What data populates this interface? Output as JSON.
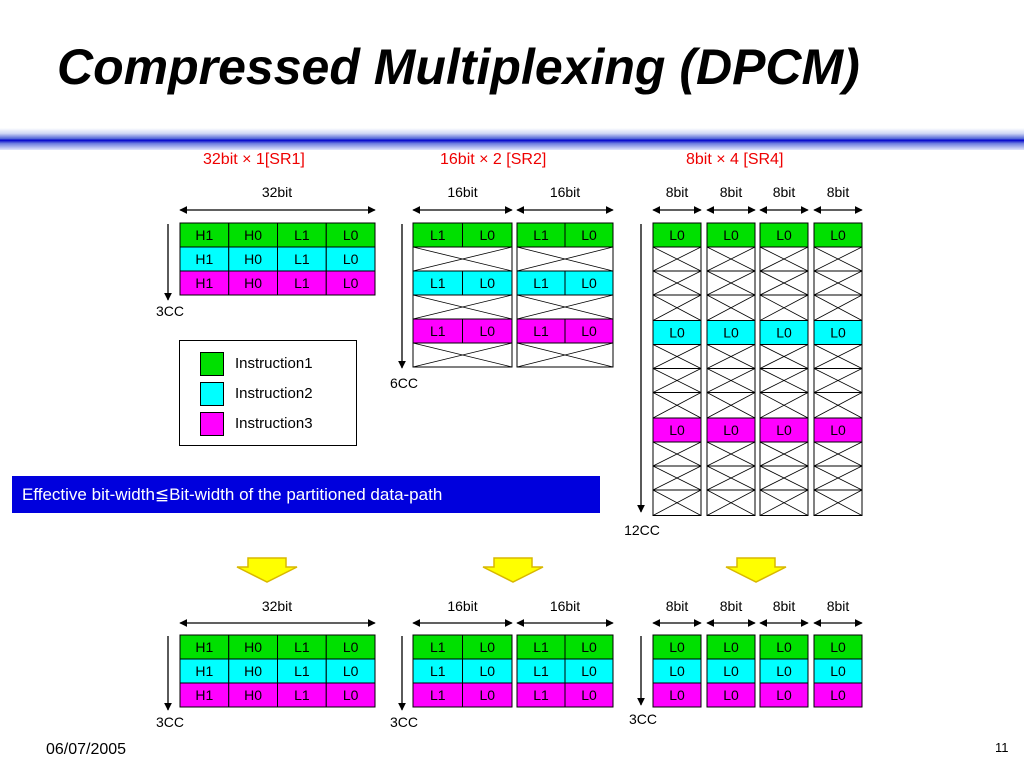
{
  "title": "Compressed Multiplexing (DPCM)",
  "modes": {
    "sr1": "32bit × 1[SR1]",
    "sr2": "16bit × 2 [SR2]",
    "sr4": "8bit × 4 [SR4]"
  },
  "widths": {
    "w32": "32bit",
    "w16": "16bit",
    "w8": "8bit"
  },
  "cycles": {
    "c3": "3CC",
    "c6": "6CC",
    "c12": "12CC"
  },
  "cells": {
    "h1": "H1",
    "h0": "H0",
    "l1": "L1",
    "l0": "L0"
  },
  "legend": [
    "Instruction1",
    "Instruction2",
    "Instruction3"
  ],
  "colors": {
    "instruction1": "#00e000",
    "instruction2": "#00ffff",
    "instruction3": "#ff00ff",
    "arrow_fill": "#ffff00",
    "arrow_stroke": "#d8b800",
    "note_bg": "#0000dd"
  },
  "note": "Effective bit-width≦Bit-width of the partitioned data-path",
  "footer": {
    "date": "06/07/2005",
    "page": "11"
  }
}
